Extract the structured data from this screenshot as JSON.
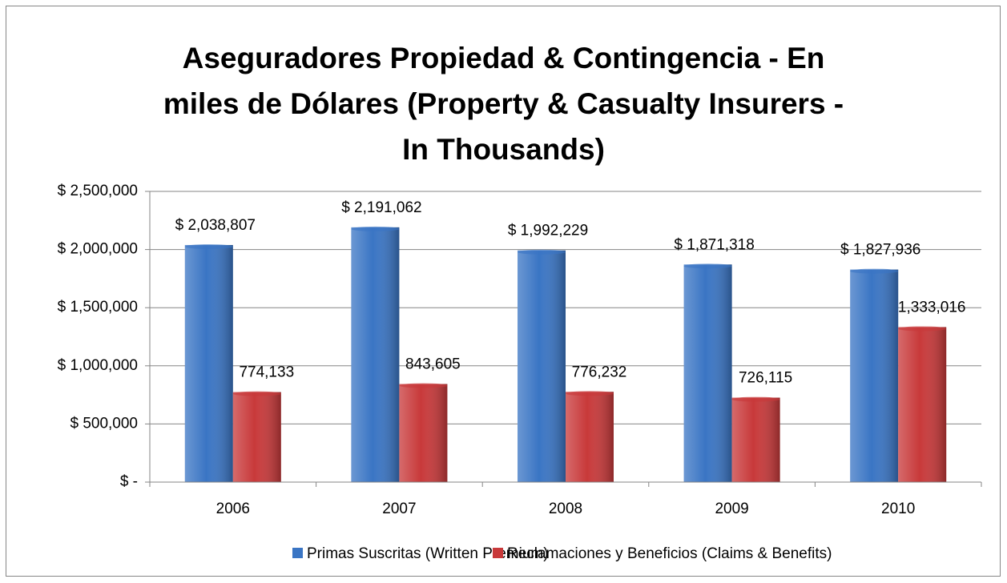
{
  "chart_data": {
    "type": "bar",
    "title": "Aseguradores Propiedad & Contingencia - En\nmiles de Dólares (Property & Casualty Insurers -\nIn Thousands)",
    "categories": [
      "2006",
      "2007",
      "2008",
      "2009",
      "2010"
    ],
    "series": [
      {
        "name": "Primas Suscritas (Written Premium)",
        "color": "#3a75c4",
        "values": [
          2038807,
          2191062,
          1992229,
          1871318,
          1827936
        ],
        "value_labels": [
          "$ 2,038,807",
          "$ 2,191,062",
          "$ 1,992,229",
          "$ 1,871,318",
          "$ 1,827,936"
        ]
      },
      {
        "name": "Reclamaciones y Beneficios (Claims & Benefits)",
        "color": "#c8393a",
        "values": [
          774133,
          843605,
          776232,
          726115,
          1333016
        ],
        "value_labels": [
          "774,133",
          "843,605",
          "776,232",
          "726,115",
          "1,333,016"
        ]
      }
    ],
    "ylim": [
      0,
      2500000
    ],
    "yticks": [
      {
        "value": 0,
        "label": "$ -"
      },
      {
        "value": 500000,
        "label": "$ 500,000"
      },
      {
        "value": 1000000,
        "label": "$ 1,000,000"
      },
      {
        "value": 1500000,
        "label": "$ 1,500,000"
      },
      {
        "value": 2000000,
        "label": "$ 2,000,000"
      },
      {
        "value": 2500000,
        "label": "$ 2,500,000"
      }
    ],
    "grid": true,
    "legend": "bottom"
  }
}
